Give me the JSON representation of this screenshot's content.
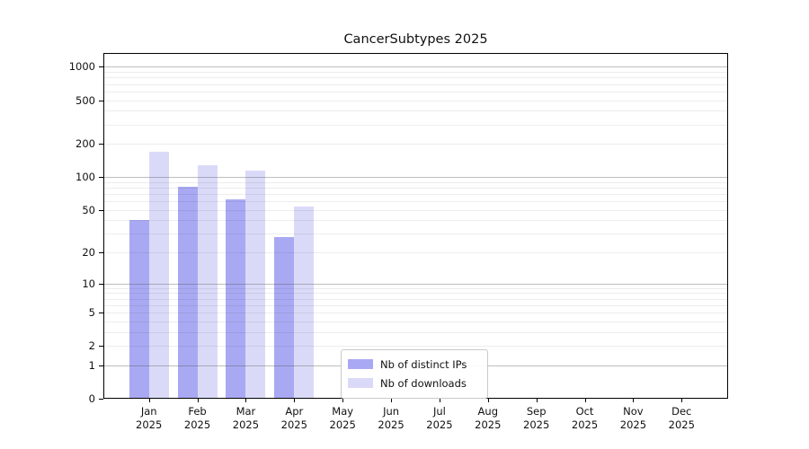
{
  "figure": {
    "title": "CancerSubtypes 2025"
  },
  "chart_data": {
    "type": "bar",
    "title": "CancerSubtypes 2025",
    "x_month_labels": [
      "Jan",
      "Feb",
      "Mar",
      "Apr",
      "May",
      "Jun",
      "Jul",
      "Aug",
      "Sep",
      "Oct",
      "Nov",
      "Dec"
    ],
    "x_year_label": "2025",
    "series": [
      {
        "name": "Nb of distinct IPs",
        "color": "#a9a9f3",
        "values": [
          40,
          81,
          62,
          28,
          0,
          0,
          0,
          0,
          0,
          0,
          0,
          0
        ]
      },
      {
        "name": "Nb of downloads",
        "color": "#dadaf8",
        "values": [
          170,
          127,
          115,
          54,
          0,
          0,
          0,
          0,
          0,
          0,
          0,
          0
        ]
      }
    ],
    "y_ticks": [
      0,
      1,
      2,
      5,
      10,
      20,
      50,
      100,
      200,
      500,
      1000
    ],
    "y_major_gridlines": [
      1,
      10,
      100,
      1000
    ],
    "y_scale": "log10(value+1)",
    "ylim": [
      0,
      1340
    ],
    "grid": "on",
    "legend_position": "inside-bottom-center",
    "colors": {
      "distinct_ips": "#a9a9f3",
      "downloads": "#dadaf8",
      "major_grid": "#b5b5b5",
      "minor_grid": "#ededed",
      "spine": "#000000"
    }
  }
}
